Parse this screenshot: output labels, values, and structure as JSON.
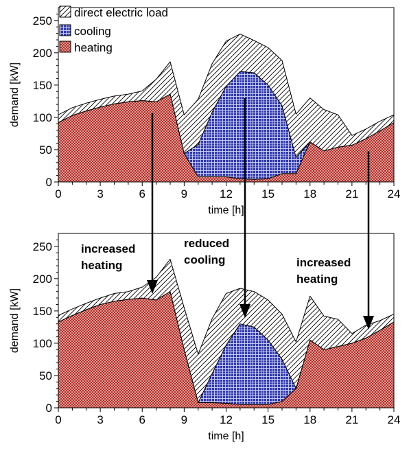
{
  "chart_data": [
    {
      "type": "area",
      "stacked": true,
      "x": [
        0,
        1,
        2,
        3,
        4,
        5,
        6,
        7,
        8,
        9,
        10,
        11,
        12,
        13,
        14,
        15,
        16,
        17,
        18,
        19,
        20,
        21,
        22,
        23,
        24
      ],
      "series": [
        {
          "name": "heating",
          "values": [
            92,
            103,
            110,
            116,
            121,
            124,
            126,
            124,
            136,
            44,
            8,
            8,
            8,
            5,
            4,
            5,
            13,
            13,
            62,
            48,
            54,
            57,
            67,
            79,
            92
          ]
        },
        {
          "name": "cooling",
          "values": [
            0,
            0,
            0,
            0,
            0,
            0,
            0,
            0,
            0,
            0,
            50,
            100,
            140,
            166,
            165,
            145,
            105,
            25,
            0,
            0,
            0,
            0,
            0,
            0,
            0
          ]
        },
        {
          "name": "direct electric load",
          "values": [
            12,
            12,
            12,
            12,
            12,
            12,
            15,
            35,
            50,
            60,
            70,
            75,
            70,
            58,
            50,
            58,
            70,
            67,
            68,
            64,
            50,
            15,
            15,
            15,
            12
          ]
        }
      ],
      "xlabel": "time [h]",
      "ylabel": "demand [kW]",
      "xlim": [
        0,
        24
      ],
      "ylim": [
        0,
        270
      ],
      "xticks": [
        0,
        3,
        6,
        9,
        12,
        15,
        18,
        21,
        24
      ],
      "yticks": [
        0,
        50,
        100,
        150,
        200,
        250
      ],
      "legend": "top-left",
      "grid": false
    },
    {
      "type": "area",
      "stacked": true,
      "x": [
        0,
        1,
        2,
        3,
        4,
        5,
        6,
        7,
        8,
        9,
        10,
        11,
        12,
        13,
        14,
        15,
        16,
        17,
        18,
        19,
        20,
        21,
        22,
        23,
        24
      ],
      "series": [
        {
          "name": "heating",
          "values": [
            133,
            143,
            152,
            160,
            165,
            168,
            170,
            167,
            180,
            90,
            8,
            8,
            7,
            5,
            5,
            5,
            10,
            30,
            105,
            90,
            95,
            100,
            108,
            120,
            133
          ]
        },
        {
          "name": "cooling",
          "values": [
            0,
            0,
            0,
            0,
            0,
            0,
            0,
            0,
            0,
            0,
            0,
            45,
            90,
            125,
            120,
            100,
            65,
            0,
            0,
            0,
            0,
            0,
            0,
            0,
            0
          ]
        },
        {
          "name": "direct electric load",
          "values": [
            10,
            10,
            10,
            10,
            12,
            12,
            17,
            35,
            50,
            65,
            75,
            85,
            80,
            55,
            55,
            62,
            70,
            72,
            68,
            52,
            42,
            15,
            20,
            15,
            12
          ]
        }
      ],
      "xlabel": "time [h]",
      "ylabel": "demand [kW]",
      "xlim": [
        0,
        24
      ],
      "ylim": [
        0,
        270
      ],
      "xticks": [
        0,
        3,
        6,
        9,
        12,
        15,
        18,
        21,
        24
      ],
      "yticks": [
        0,
        50,
        100,
        150,
        200,
        250
      ],
      "annotations": [
        {
          "text": [
            "increased",
            "heating"
          ]
        },
        {
          "text": [
            "reduced",
            "cooling"
          ]
        },
        {
          "text": [
            "increased",
            "heating"
          ]
        }
      ]
    }
  ],
  "colors": {
    "heating": "#c0504d",
    "heating_fill": "#b0302a",
    "cooling": "#2f38b0",
    "hatch": "#000000"
  }
}
